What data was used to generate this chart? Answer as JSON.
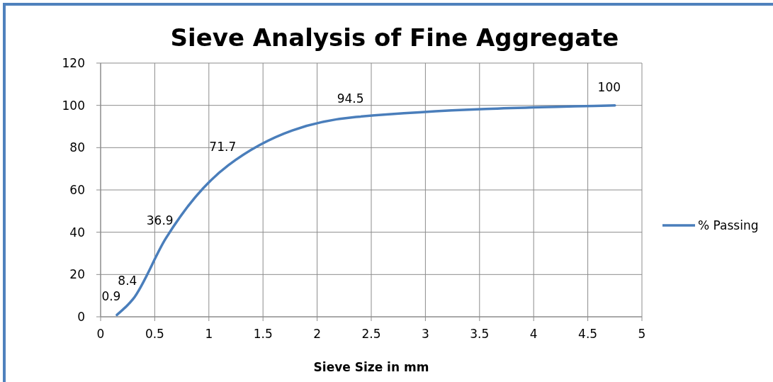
{
  "chart_data": {
    "type": "line",
    "title": "Sieve Analysis of Fine Aggregate",
    "xlabel": "Sieve Size in mm",
    "x": [
      0.15,
      0.3,
      0.6,
      1.18,
      2.36,
      4.75
    ],
    "series": [
      {
        "name": "% Passing",
        "color": "#4a7ebb",
        "values": [
          0.9,
          8.4,
          36.9,
          71.7,
          94.5,
          100
        ]
      }
    ],
    "xlim": [
      0,
      5
    ],
    "xticks": [
      0,
      0.5,
      1,
      1.5,
      2,
      2.5,
      3,
      3.5,
      4,
      4.5,
      5
    ],
    "ylim": [
      0,
      120
    ],
    "yticks": [
      0,
      20,
      40,
      60,
      80,
      100,
      120
    ],
    "grid": true,
    "legend": "right",
    "marker": "none",
    "line_style": "solid",
    "data_labels": true
  }
}
